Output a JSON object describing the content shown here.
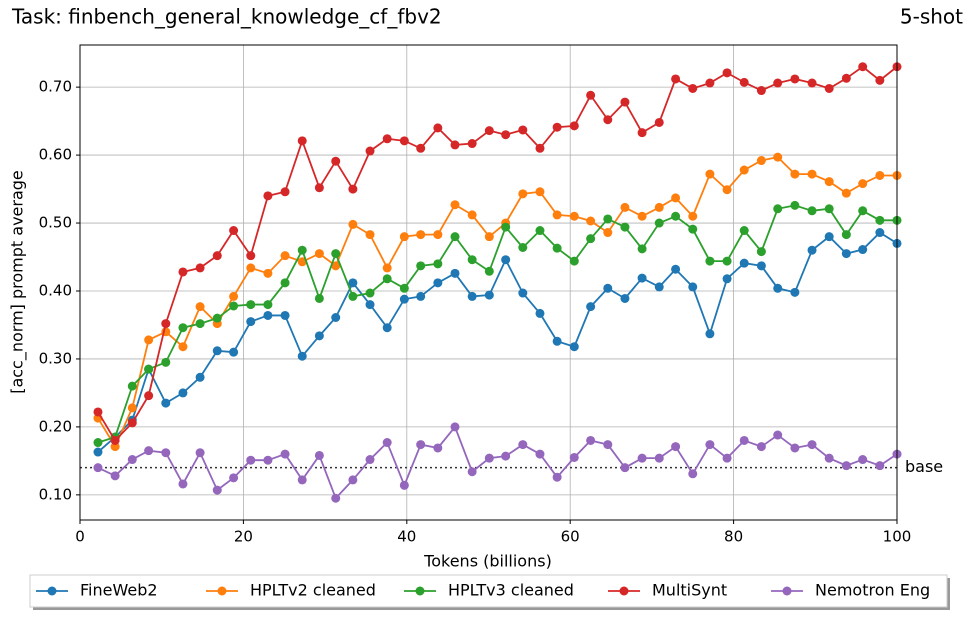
{
  "chart_data": {
    "type": "line",
    "title": "Task: finbench_general_knowledge_cf_fbv2",
    "subtitle": "5-shot",
    "x_label": "Tokens (billions)",
    "y_label": "[acc_norm] prompt average",
    "xlim": [
      0,
      100
    ],
    "ylim": [
      0.063,
      0.762
    ],
    "xticks": [
      0,
      20,
      40,
      60,
      80,
      100
    ],
    "yticks": [
      {
        "value": 0.1,
        "label": "0.10"
      },
      {
        "value": 0.2,
        "label": "0.20"
      },
      {
        "value": 0.3,
        "label": "0.30"
      },
      {
        "value": 0.4,
        "label": "0.40"
      },
      {
        "value": 0.5,
        "label": "0.50"
      },
      {
        "value": 0.6,
        "label": "0.60"
      },
      {
        "value": 0.7,
        "label": "0.70"
      }
    ],
    "grid": true,
    "legend": "bottom",
    "baseline": {
      "value": 0.14,
      "label": "base"
    },
    "x": [
      2.2,
      4.3,
      6.4,
      8.4,
      10.5,
      12.6,
      14.7,
      16.8,
      18.8,
      20.9,
      23.0,
      25.1,
      27.2,
      29.3,
      31.3,
      33.4,
      35.5,
      37.6,
      39.7,
      41.7,
      43.8,
      45.9,
      48.0,
      50.1,
      52.1,
      54.2,
      56.3,
      58.4,
      60.5,
      62.5,
      64.6,
      66.7,
      68.8,
      70.9,
      72.9,
      75.0,
      77.1,
      79.2,
      81.3,
      83.4,
      85.4,
      87.5,
      89.6,
      91.7,
      93.8,
      95.8,
      97.9,
      100.0
    ],
    "series": [
      {
        "name": "FineWeb2",
        "color": "#1f77b4",
        "values": [
          0.163,
          0.185,
          0.21,
          0.285,
          0.235,
          0.25,
          0.273,
          0.312,
          0.31,
          0.355,
          0.364,
          0.364,
          0.304,
          0.334,
          0.361,
          0.412,
          0.38,
          0.346,
          0.388,
          0.392,
          0.412,
          0.426,
          0.392,
          0.394,
          0.446,
          0.397,
          0.367,
          0.326,
          0.318,
          0.377,
          0.404,
          0.389,
          0.419,
          0.406,
          0.432,
          0.406,
          0.337,
          0.418,
          0.441,
          0.437,
          0.404,
          0.398,
          0.46,
          0.48,
          0.455,
          0.461,
          0.486,
          0.47
        ]
      },
      {
        "name": "HPLTv2 cleaned",
        "color": "#ff7f0e",
        "values": [
          0.213,
          0.171,
          0.228,
          0.328,
          0.34,
          0.318,
          0.377,
          0.352,
          0.392,
          0.434,
          0.426,
          0.452,
          0.443,
          0.455,
          0.437,
          0.498,
          0.483,
          0.434,
          0.48,
          0.483,
          0.483,
          0.527,
          0.512,
          0.48,
          0.5,
          0.543,
          0.546,
          0.512,
          0.51,
          0.503,
          0.486,
          0.523,
          0.51,
          0.523,
          0.537,
          0.51,
          0.572,
          0.549,
          0.578,
          0.592,
          0.597,
          0.572,
          0.572,
          0.561,
          0.544,
          0.558,
          0.57,
          0.57
        ]
      },
      {
        "name": "HPLTv3 cleaned",
        "color": "#2ca02c",
        "values": [
          0.177,
          0.185,
          0.26,
          0.285,
          0.295,
          0.346,
          0.352,
          0.36,
          0.378,
          0.38,
          0.38,
          0.412,
          0.46,
          0.389,
          0.455,
          0.392,
          0.397,
          0.418,
          0.404,
          0.437,
          0.44,
          0.48,
          0.446,
          0.429,
          0.494,
          0.464,
          0.489,
          0.463,
          0.444,
          0.477,
          0.506,
          0.494,
          0.462,
          0.5,
          0.51,
          0.491,
          0.444,
          0.444,
          0.489,
          0.458,
          0.521,
          0.526,
          0.518,
          0.521,
          0.483,
          0.518,
          0.504,
          0.504
        ]
      },
      {
        "name": "MultiSynt",
        "color": "#d62728",
        "values": [
          0.222,
          0.18,
          0.206,
          0.246,
          0.352,
          0.428,
          0.434,
          0.452,
          0.489,
          0.452,
          0.54,
          0.546,
          0.621,
          0.552,
          0.591,
          0.55,
          0.606,
          0.624,
          0.621,
          0.61,
          0.64,
          0.615,
          0.617,
          0.636,
          0.63,
          0.637,
          0.61,
          0.641,
          0.643,
          0.688,
          0.652,
          0.678,
          0.633,
          0.648,
          0.712,
          0.698,
          0.706,
          0.721,
          0.707,
          0.695,
          0.706,
          0.712,
          0.706,
          0.698,
          0.713,
          0.73,
          0.71,
          0.73
        ]
      },
      {
        "name": "Nemotron Eng",
        "color": "#9467bd",
        "values": [
          0.14,
          0.128,
          0.152,
          0.165,
          0.162,
          0.116,
          0.162,
          0.107,
          0.125,
          0.151,
          0.151,
          0.16,
          0.122,
          0.158,
          0.095,
          0.122,
          0.152,
          0.177,
          0.114,
          0.174,
          0.169,
          0.2,
          0.134,
          0.154,
          0.157,
          0.174,
          0.16,
          0.126,
          0.155,
          0.18,
          0.174,
          0.14,
          0.154,
          0.154,
          0.171,
          0.131,
          0.174,
          0.154,
          0.18,
          0.171,
          0.188,
          0.169,
          0.174,
          0.154,
          0.143,
          0.152,
          0.143,
          0.16
        ]
      }
    ]
  }
}
